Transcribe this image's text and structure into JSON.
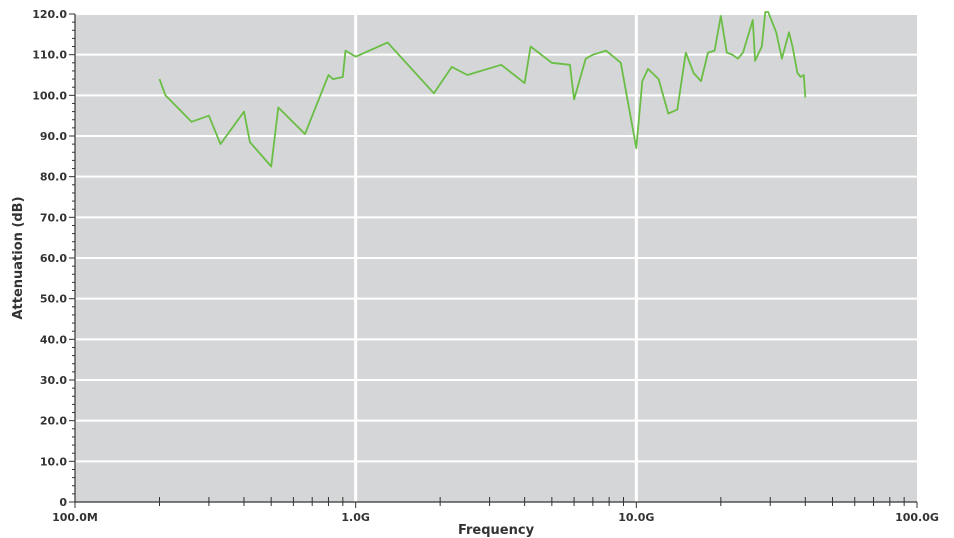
{
  "chart_data": {
    "type": "line",
    "xlabel": "Frequency",
    "ylabel": "Attenuation (dB)",
    "x_scale": "log",
    "xlim": [
      100000000,
      100000000000
    ],
    "ylim": [
      0,
      120
    ],
    "x_ticks": [
      {
        "value": 100000000,
        "label": "100.0M"
      },
      {
        "value": 1000000000,
        "label": "1.0G"
      },
      {
        "value": 10000000000,
        "label": "10.0G"
      },
      {
        "value": 100000000000,
        "label": "100.0G"
      }
    ],
    "y_ticks": [
      {
        "value": 0,
        "label": "0"
      },
      {
        "value": 10,
        "label": "10.0"
      },
      {
        "value": 20,
        "label": "20.0"
      },
      {
        "value": 30,
        "label": "30.0"
      },
      {
        "value": 40,
        "label": "40.0"
      },
      {
        "value": 50,
        "label": "50.0"
      },
      {
        "value": 60,
        "label": "60.0"
      },
      {
        "value": 70,
        "label": "70.0"
      },
      {
        "value": 80,
        "label": "80.0"
      },
      {
        "value": 90,
        "label": "90.0"
      },
      {
        "value": 100,
        "label": "100.0"
      },
      {
        "value": 110,
        "label": "110.0"
      },
      {
        "value": 120,
        "label": "120.0"
      }
    ],
    "grid": true,
    "colors": {
      "plot_background": "#d5d6d8",
      "grid": "#ffffff",
      "line": "#6abe45",
      "axis": "#333333"
    },
    "series": [
      {
        "x": [
          200000000,
          210000000,
          260000000,
          300000000,
          330000000,
          400000000,
          420000000,
          500000000,
          530000000,
          660000000,
          800000000,
          830000000,
          900000000,
          920000000,
          1000000000,
          1300000000,
          1900000000,
          2200000000,
          2500000000,
          3300000000,
          4000000000,
          4200000000,
          5000000000,
          5800000000,
          6000000000,
          6600000000,
          7000000000,
          7800000000,
          8800000000,
          10000000000,
          10500000000,
          11000000000,
          12000000000,
          13000000000,
          14000000000,
          15000000000,
          16000000000,
          17000000000,
          18000000000,
          19000000000,
          20000000000,
          21000000000,
          22000000000,
          23000000000,
          24000000000,
          26000000000,
          26500000000,
          28000000000,
          28800000000,
          29500000000,
          31500000000,
          33000000000,
          35000000000,
          36000000000,
          37500000000,
          38500000000,
          39500000000,
          40000000000
        ],
        "values": [
          104,
          100,
          93.5,
          95,
          88,
          96,
          88.5,
          82.5,
          97,
          90.5,
          105,
          104,
          104.5,
          111,
          109.5,
          113,
          100.5,
          107,
          105,
          107.5,
          103,
          112,
          108,
          107.5,
          99,
          109,
          110,
          111,
          108,
          87,
          103.5,
          106.5,
          104,
          95.5,
          96.5,
          110.5,
          105.5,
          103.5,
          110.5,
          111,
          119.5,
          110.5,
          110,
          109,
          110.5,
          118.5,
          108.5,
          112,
          120.5,
          120.5,
          115.5,
          109,
          115.5,
          112,
          105.5,
          104.5,
          105,
          99.5
        ]
      }
    ]
  }
}
